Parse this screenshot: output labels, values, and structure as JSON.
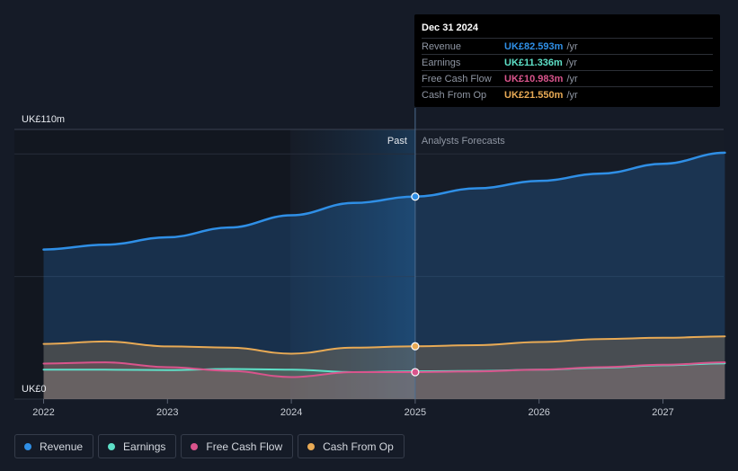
{
  "chart_data": {
    "type": "area",
    "y_axis": {
      "top_label": "UK£110m",
      "bottom_label": "UK£0",
      "ylim": [
        0,
        110
      ]
    },
    "x_axis": {
      "tick_labels": [
        "2022",
        "2023",
        "2024",
        "2025",
        "2026",
        "2027"
      ]
    },
    "divider": {
      "x": 2025.0,
      "past_label": "Past",
      "forecast_label": "Analysts Forecasts"
    },
    "series": [
      {
        "name": "Revenue",
        "color": "#2f8fe6",
        "points": [
          [
            2022.0,
            61
          ],
          [
            2022.5,
            63
          ],
          [
            2023.0,
            66
          ],
          [
            2023.5,
            70
          ],
          [
            2024.0,
            75
          ],
          [
            2024.5,
            80
          ],
          [
            2025.0,
            82.593
          ],
          [
            2025.5,
            86
          ],
          [
            2026.0,
            89
          ],
          [
            2026.5,
            92
          ],
          [
            2027.0,
            96
          ],
          [
            2027.5,
            100.5
          ]
        ]
      },
      {
        "name": "Earnings",
        "color": "#5ee0c8",
        "points": [
          [
            2022.0,
            12
          ],
          [
            2022.5,
            12
          ],
          [
            2023.0,
            11.8
          ],
          [
            2023.5,
            12.3
          ],
          [
            2024.0,
            12
          ],
          [
            2024.5,
            11
          ],
          [
            2025.0,
            11.336
          ],
          [
            2025.5,
            11.5
          ],
          [
            2026.0,
            12
          ],
          [
            2026.5,
            12.8
          ],
          [
            2027.0,
            13.8
          ],
          [
            2027.5,
            14.6
          ]
        ]
      },
      {
        "name": "Free Cash Flow",
        "color": "#d9548c",
        "points": [
          [
            2022.0,
            14.5
          ],
          [
            2022.5,
            15
          ],
          [
            2023.0,
            13
          ],
          [
            2023.5,
            11.5
          ],
          [
            2024.0,
            9
          ],
          [
            2024.5,
            11
          ],
          [
            2025.0,
            10.983
          ],
          [
            2025.5,
            11.3
          ],
          [
            2026.0,
            12
          ],
          [
            2026.5,
            13
          ],
          [
            2027.0,
            14
          ],
          [
            2027.5,
            15
          ]
        ]
      },
      {
        "name": "Cash From Op",
        "color": "#e8aa55",
        "points": [
          [
            2022.0,
            22.5
          ],
          [
            2022.5,
            23.5
          ],
          [
            2023.0,
            21.5
          ],
          [
            2023.5,
            21
          ],
          [
            2024.0,
            18.5
          ],
          [
            2024.5,
            21
          ],
          [
            2025.0,
            21.55
          ],
          [
            2025.5,
            22
          ],
          [
            2026.0,
            23.3
          ],
          [
            2026.5,
            24.5
          ],
          [
            2027.0,
            25
          ],
          [
            2027.5,
            25.6
          ]
        ]
      }
    ]
  },
  "tooltip": {
    "date": "Dec 31 2024",
    "rows": [
      {
        "name": "Revenue",
        "value": "UK£82.593m",
        "unit": "/yr",
        "color": "#2f8fe6"
      },
      {
        "name": "Earnings",
        "value": "UK£11.336m",
        "unit": "/yr",
        "color": "#5ee0c8"
      },
      {
        "name": "Free Cash Flow",
        "value": "UK£10.983m",
        "unit": "/yr",
        "color": "#d9548c"
      },
      {
        "name": "Cash From Op",
        "value": "UK£21.550m",
        "unit": "/yr",
        "color": "#e8aa55"
      }
    ]
  },
  "legend": [
    {
      "label": "Revenue",
      "color": "#2f8fe6"
    },
    {
      "label": "Earnings",
      "color": "#5ee0c8"
    },
    {
      "label": "Free Cash Flow",
      "color": "#d9548c"
    },
    {
      "label": "Cash From Op",
      "color": "#e8aa55"
    }
  ]
}
